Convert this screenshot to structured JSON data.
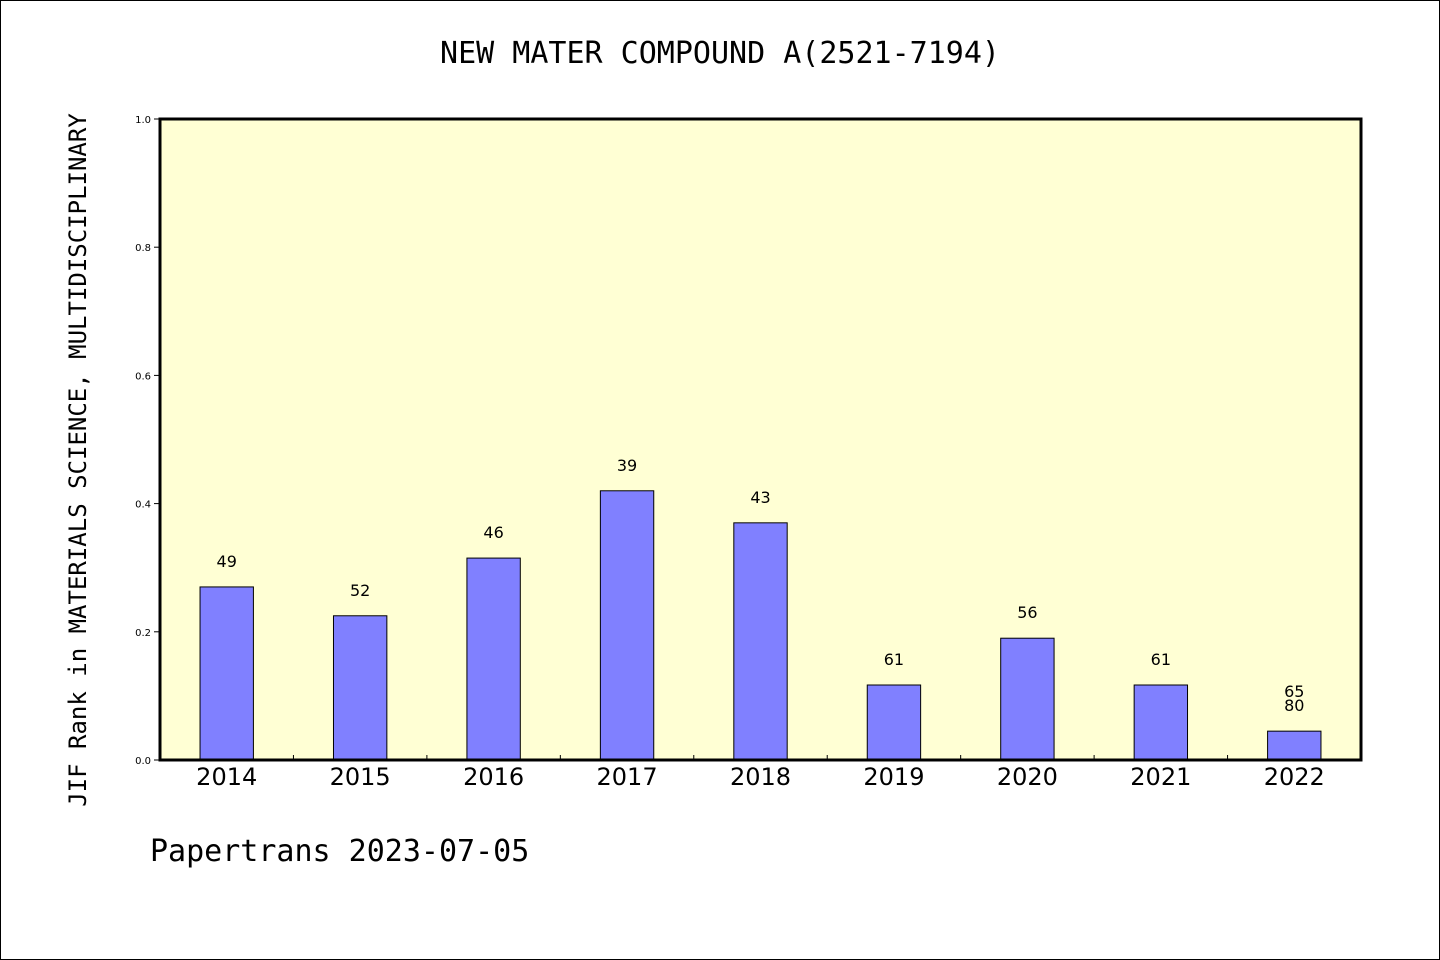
{
  "footer": "Papertrans 2023-07-05",
  "colors": {
    "plot_background": "#ffffd4",
    "bar_fill": "#8080ff",
    "bar_stroke": "#000000"
  },
  "chart_data": {
    "type": "bar",
    "title": "NEW MATER COMPOUND A(2521-7194)",
    "xlabel": "",
    "ylabel": "JIF Rank in MATERIALS SCIENCE, MULTIDISCIPLINARY",
    "ylim": [
      0,
      1.0
    ],
    "yticks": [
      "0.0",
      "0.2",
      "0.4",
      "0.6",
      "0.8",
      "1.0"
    ],
    "grid": false,
    "categories": [
      "2014",
      "2015",
      "2016",
      "2017",
      "2018",
      "2019",
      "2020",
      "2021",
      "2022"
    ],
    "values": [
      0.27,
      0.225,
      0.315,
      0.42,
      0.37,
      0.117,
      0.19,
      0.117,
      0.045
    ],
    "data_labels": [
      [
        "49"
      ],
      [
        "52"
      ],
      [
        "46"
      ],
      [
        "39"
      ],
      [
        "43"
      ],
      [
        "61"
      ],
      [
        "56"
      ],
      [
        "61"
      ],
      [
        "65",
        "80"
      ]
    ]
  }
}
